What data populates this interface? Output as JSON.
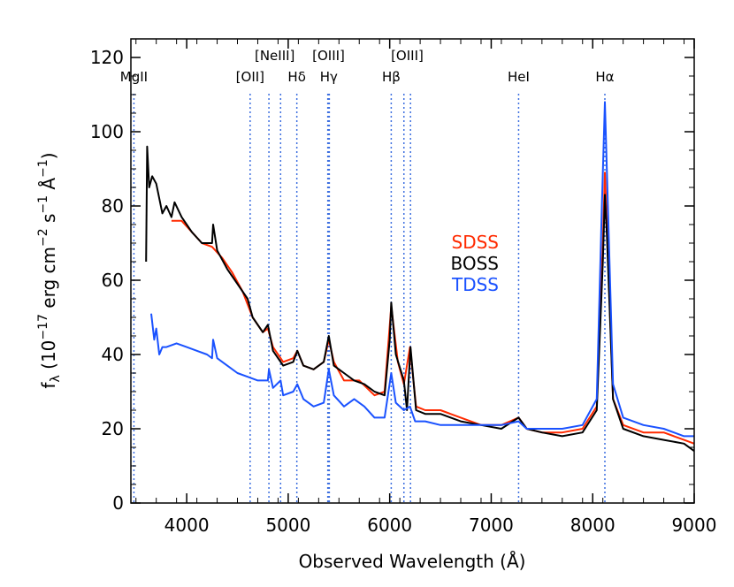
{
  "chart_data": {
    "type": "line",
    "xlabel": "Observed Wavelength (Å)",
    "ylabel": "f_λ (10^-17 erg cm^-2 s^-1 Å^-1)",
    "xlim": [
      3450,
      9000
    ],
    "ylim": [
      0,
      125
    ],
    "x_ticks": [
      4000,
      5000,
      6000,
      7000,
      8000,
      9000
    ],
    "y_ticks": [
      0,
      20,
      40,
      60,
      80,
      100,
      120
    ],
    "x_tick_labels": [
      "4000",
      "5000",
      "6000",
      "7000",
      "8000",
      "9000"
    ],
    "y_tick_labels": [
      "0",
      "20",
      "40",
      "60",
      "80",
      "100",
      "120"
    ],
    "grid": false,
    "legend_position": "middle-right",
    "emission_lines": [
      {
        "label": "MgII",
        "x": [
          3480
        ],
        "row": "lower"
      },
      {
        "label": "[OII]",
        "x": [
          4625
        ],
        "row": "lower"
      },
      {
        "label": "[NeIII]",
        "x": [
          4810,
          4925
        ],
        "row": "upper"
      },
      {
        "label": "Hδ",
        "x": [
          5085
        ],
        "row": "lower"
      },
      {
        "label": "[OIII]",
        "x": [
          5390,
          5405
        ],
        "row": "upper"
      },
      {
        "label": "Hγ",
        "x": [
          5400
        ],
        "row": "lower"
      },
      {
        "label": "Hβ",
        "x": [
          6015
        ],
        "row": "lower"
      },
      {
        "label": "[OIII]",
        "x": [
          6140,
          6205
        ],
        "row": "upper"
      },
      {
        "label": "HeI",
        "x": [
          7270
        ],
        "row": "lower"
      },
      {
        "label": "Hα",
        "x": [
          8120
        ],
        "row": "lower"
      }
    ],
    "series": [
      {
        "name": "SDSS",
        "color": "#ff2a00",
        "points": [
          [
            3850,
            76
          ],
          [
            3950,
            76
          ],
          [
            4050,
            73
          ],
          [
            4150,
            70
          ],
          [
            4250,
            69
          ],
          [
            4350,
            66
          ],
          [
            4450,
            62
          ],
          [
            4550,
            57
          ],
          [
            4650,
            50
          ],
          [
            4750,
            46
          ],
          [
            4800,
            47
          ],
          [
            4850,
            42
          ],
          [
            4950,
            38
          ],
          [
            5050,
            39
          ],
          [
            5090,
            41
          ],
          [
            5150,
            37
          ],
          [
            5250,
            36
          ],
          [
            5350,
            38
          ],
          [
            5400,
            44
          ],
          [
            5450,
            38
          ],
          [
            5550,
            33
          ],
          [
            5700,
            33
          ],
          [
            5850,
            29
          ],
          [
            5950,
            30
          ],
          [
            6015,
            53
          ],
          [
            6080,
            38
          ],
          [
            6140,
            32
          ],
          [
            6200,
            42
          ],
          [
            6260,
            26
          ],
          [
            6350,
            25
          ],
          [
            6500,
            25
          ],
          [
            6700,
            23
          ],
          [
            6900,
            21
          ],
          [
            7100,
            21
          ],
          [
            7270,
            23
          ],
          [
            7350,
            20
          ],
          [
            7500,
            19
          ],
          [
            7700,
            19
          ],
          [
            7900,
            20
          ],
          [
            8040,
            26
          ],
          [
            8100,
            70
          ],
          [
            8120,
            89
          ],
          [
            8140,
            75
          ],
          [
            8200,
            28
          ],
          [
            8300,
            21
          ],
          [
            8500,
            19
          ],
          [
            8700,
            19
          ],
          [
            8900,
            17
          ],
          [
            9000,
            16
          ]
        ]
      },
      {
        "name": "BOSS",
        "color": "#000000",
        "points": [
          [
            3600,
            65
          ],
          [
            3610,
            96
          ],
          [
            3630,
            85
          ],
          [
            3660,
            88
          ],
          [
            3700,
            86
          ],
          [
            3760,
            78
          ],
          [
            3800,
            80
          ],
          [
            3850,
            77
          ],
          [
            3880,
            81
          ],
          [
            3950,
            77
          ],
          [
            4050,
            73
          ],
          [
            4150,
            70
          ],
          [
            4250,
            70
          ],
          [
            4260,
            75
          ],
          [
            4300,
            68
          ],
          [
            4400,
            63
          ],
          [
            4500,
            59
          ],
          [
            4600,
            55
          ],
          [
            4650,
            50
          ],
          [
            4750,
            46
          ],
          [
            4800,
            48
          ],
          [
            4850,
            41
          ],
          [
            4950,
            37
          ],
          [
            5050,
            38
          ],
          [
            5090,
            41
          ],
          [
            5150,
            37
          ],
          [
            5250,
            36
          ],
          [
            5350,
            38
          ],
          [
            5400,
            45
          ],
          [
            5450,
            37
          ],
          [
            5550,
            35
          ],
          [
            5650,
            33
          ],
          [
            5750,
            32
          ],
          [
            5850,
            30
          ],
          [
            5950,
            29
          ],
          [
            6000,
            44
          ],
          [
            6015,
            54
          ],
          [
            6060,
            40
          ],
          [
            6140,
            33
          ],
          [
            6170,
            25
          ],
          [
            6205,
            42
          ],
          [
            6260,
            25
          ],
          [
            6350,
            24
          ],
          [
            6500,
            24
          ],
          [
            6700,
            22
          ],
          [
            6900,
            21
          ],
          [
            7100,
            20
          ],
          [
            7270,
            23
          ],
          [
            7350,
            20
          ],
          [
            7500,
            19
          ],
          [
            7700,
            18
          ],
          [
            7900,
            19
          ],
          [
            8040,
            25
          ],
          [
            8100,
            65
          ],
          [
            8120,
            83
          ],
          [
            8140,
            72
          ],
          [
            8200,
            28
          ],
          [
            8300,
            20
          ],
          [
            8500,
            18
          ],
          [
            8700,
            17
          ],
          [
            8900,
            16
          ],
          [
            9000,
            14
          ]
        ]
      },
      {
        "name": "TDSS",
        "color": "#1a52ff",
        "points": [
          [
            3650,
            51
          ],
          [
            3680,
            44
          ],
          [
            3700,
            47
          ],
          [
            3730,
            40
          ],
          [
            3760,
            42
          ],
          [
            3800,
            42
          ],
          [
            3900,
            43
          ],
          [
            4000,
            42
          ],
          [
            4100,
            41
          ],
          [
            4200,
            40
          ],
          [
            4250,
            39
          ],
          [
            4260,
            44
          ],
          [
            4300,
            39
          ],
          [
            4400,
            37
          ],
          [
            4500,
            35
          ],
          [
            4600,
            34
          ],
          [
            4700,
            33
          ],
          [
            4800,
            33
          ],
          [
            4810,
            36
          ],
          [
            4850,
            31
          ],
          [
            4925,
            33
          ],
          [
            4950,
            29
          ],
          [
            5050,
            30
          ],
          [
            5090,
            32
          ],
          [
            5150,
            28
          ],
          [
            5250,
            26
          ],
          [
            5350,
            27
          ],
          [
            5400,
            36
          ],
          [
            5450,
            29
          ],
          [
            5550,
            26
          ],
          [
            5650,
            28
          ],
          [
            5750,
            26
          ],
          [
            5850,
            23
          ],
          [
            5950,
            23
          ],
          [
            6015,
            35
          ],
          [
            6060,
            27
          ],
          [
            6140,
            25
          ],
          [
            6200,
            26
          ],
          [
            6250,
            22
          ],
          [
            6350,
            22
          ],
          [
            6500,
            21
          ],
          [
            6700,
            21
          ],
          [
            6900,
            21
          ],
          [
            7100,
            21
          ],
          [
            7270,
            22
          ],
          [
            7350,
            20
          ],
          [
            7500,
            20
          ],
          [
            7700,
            20
          ],
          [
            7900,
            21
          ],
          [
            8040,
            28
          ],
          [
            8090,
            80
          ],
          [
            8120,
            108
          ],
          [
            8150,
            80
          ],
          [
            8200,
            32
          ],
          [
            8300,
            23
          ],
          [
            8500,
            21
          ],
          [
            8700,
            20
          ],
          [
            8900,
            18
          ],
          [
            9000,
            18
          ]
        ]
      }
    ]
  }
}
